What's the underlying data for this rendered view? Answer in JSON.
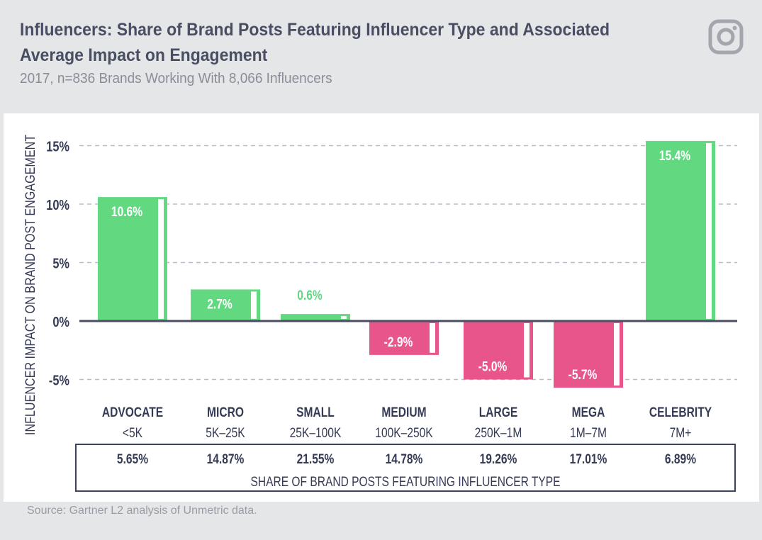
{
  "header": {
    "title": "Influencers: Share of Brand Posts Featuring Influencer Type and Associated Average Impact on Engagement",
    "subtitle": "2017, n=836 Brands Working With 8,066 Influencers"
  },
  "icons": {
    "brand": "instagram-icon"
  },
  "source": "Source: Gartner L2 analysis of Unmetric data.",
  "colors": {
    "positive": "#62d981",
    "negative": "#e8558a",
    "axis": "#4a4e63",
    "grid": "#b9bbc6",
    "label": "#353a55"
  },
  "chart_data": {
    "type": "bar",
    "title": "Influencers: Share of Brand Posts Featuring Influencer Type and Associated Average Impact on Engagement",
    "subtitle": "2017, n=836 Brands Working With 8,066 Influencers",
    "ylabel": "INFLUENCER IMPACT ON BRAND POST ENGAGEMENT",
    "xlabel": "SHARE OF BRAND POSTS FEATURING INFLUENCER TYPE",
    "ylim": [
      -5,
      15
    ],
    "yticks": [
      15,
      10,
      5,
      0,
      -5
    ],
    "ytick_labels": [
      "15%",
      "10%",
      "5%",
      "0%",
      "-5%"
    ],
    "grid": true,
    "categories": [
      "ADVOCATE",
      "MICRO",
      "SMALL",
      "MEDIUM",
      "LARGE",
      "MEGA",
      "CELEBRITY"
    ],
    "ranges": [
      "<5K",
      "5K–25K",
      "25K–100K",
      "100K–250K",
      "250K–1M",
      "1M–7M",
      "7M+"
    ],
    "values": [
      10.6,
      2.7,
      0.6,
      -2.9,
      -5.0,
      -5.7,
      15.4
    ],
    "value_labels": [
      "10.6%",
      "2.7%",
      "0.6%",
      "-2.9%",
      "-5.0%",
      "-5.7%",
      "15.4%"
    ],
    "share": [
      5.65,
      14.87,
      21.55,
      14.78,
      19.26,
      17.01,
      6.89
    ],
    "share_labels": [
      "5.65%",
      "14.87%",
      "21.55%",
      "14.78%",
      "19.26%",
      "17.01%",
      "6.89%"
    ]
  }
}
